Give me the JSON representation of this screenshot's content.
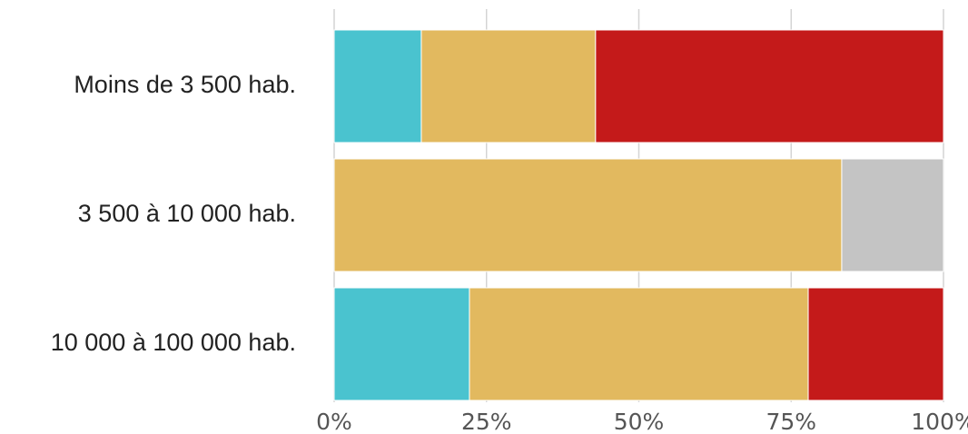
{
  "chart_data": {
    "type": "bar",
    "orientation": "horizontal",
    "stacked": true,
    "normalized": true,
    "categories": [
      "Moins de 3 500 hab.",
      "3 500 à 10 000 hab.",
      "10 000 à 100 000 hab."
    ],
    "series": [
      {
        "color": "#4ac3cf",
        "values": [
          14.3,
          0,
          22.2
        ]
      },
      {
        "color": "#e2b95f",
        "values": [
          28.6,
          83.3,
          55.6
        ]
      },
      {
        "color": "#c41a1a",
        "values": [
          57.1,
          0,
          22.2
        ]
      },
      {
        "color": "#c4c4c4",
        "values": [
          0,
          16.7,
          0
        ]
      }
    ],
    "xlim": [
      0,
      100
    ],
    "xticks": [
      "0%",
      "25%",
      "50%",
      "75%",
      "100%"
    ],
    "xtick_values": [
      0,
      25,
      50,
      75,
      100
    ],
    "grid": true,
    "legend": "none"
  }
}
